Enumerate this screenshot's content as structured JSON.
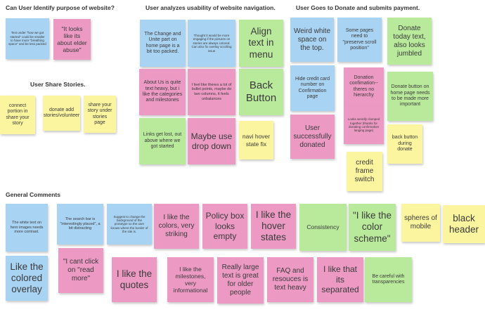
{
  "headings": {
    "purpose": "Can User Identify purpose of website?",
    "usability": "User analyzes usability of website navigation.",
    "donate": "User Goes to Donate and submits payment.",
    "share": "User Share Stories.",
    "general": "General Comments"
  },
  "notes": {
    "white_text_good": "Text under \"how we got started\" could be smaller to have more \"breathing space\" and be less packed",
    "elder_abuse": "\"It looks like its about elder abuse\"",
    "connect_portion": "connect portion in share your story",
    "donate_add_stories": "donate add stories/volunteer",
    "share_under_stories": "share your story under stories page",
    "change_unite": "The Change and Unite part on home page is a bit too packed.",
    "thought_engaging": "Thought it would be more engaging if the pictures on stories are always colored. Can also fix overlay scrolling issue",
    "align_text": "Align text in menu",
    "about_us": "About Us is quite text heavy, but i like the categories and milestones",
    "bullet_points": "I feel like theres a lot of bullet points, maybe do two columns, it feels unbalances",
    "back_button": "Back Button",
    "links_lost": "Links get lost, out above where we got started",
    "drop_down": "Maybe use drop down",
    "navi_hover": "navi hover state fix",
    "weird_white": "Weird white space on the top.",
    "preserve_scroll": "Some pages need to \"preserve scroll position\"",
    "donate_today": "Donate today text, also looks jumbled",
    "hide_credit": "Hide credit card number on Confirmation page",
    "no_hierarchy": "Donation confimation-- theres no hierarchy",
    "looks_weirdly": "Looks weirdly clumped together (thanks for donating confirmation langing page)",
    "donate_more_important": "Donate button on home page needs to be made more important",
    "back_button_donate": "back button during donate",
    "user_donated": "User successfully donated",
    "credit_frame": "credit frame switch",
    "white_text_hero": "The white text on hero images needs more contrast.",
    "search_bar": "The search bar is \"interestingly placed\", a bit distracting",
    "suggest_change": "Suggest to change the background of the prototype so the user knows where the border of the site is.",
    "like_colors": "I like the colors, very striking",
    "policy_box": "Policy box looks empty",
    "hover_states": "I like the hover states",
    "consistency": "Consistency",
    "color_scheme": "\"I like the color scheme\"",
    "spheres": "spheres of mobile",
    "black_header": "black header",
    "colored_overlay": "Like the colored overlay",
    "cant_click": "\"I cant click on \"read more\"",
    "like_quotes": "I like the quotes",
    "milestones": "I like the milestones, very informational",
    "large_text": "Really large text is great for older people",
    "faq": "FAQ and resouces is text heavy",
    "separated": "I like that its separated",
    "transparencies": "Be careful with transparencies"
  },
  "colors": {
    "blue": "#a9d3f3",
    "pink": "#ec9ac4",
    "green": "#b9ea9c",
    "yellow": "#fcf59f"
  }
}
